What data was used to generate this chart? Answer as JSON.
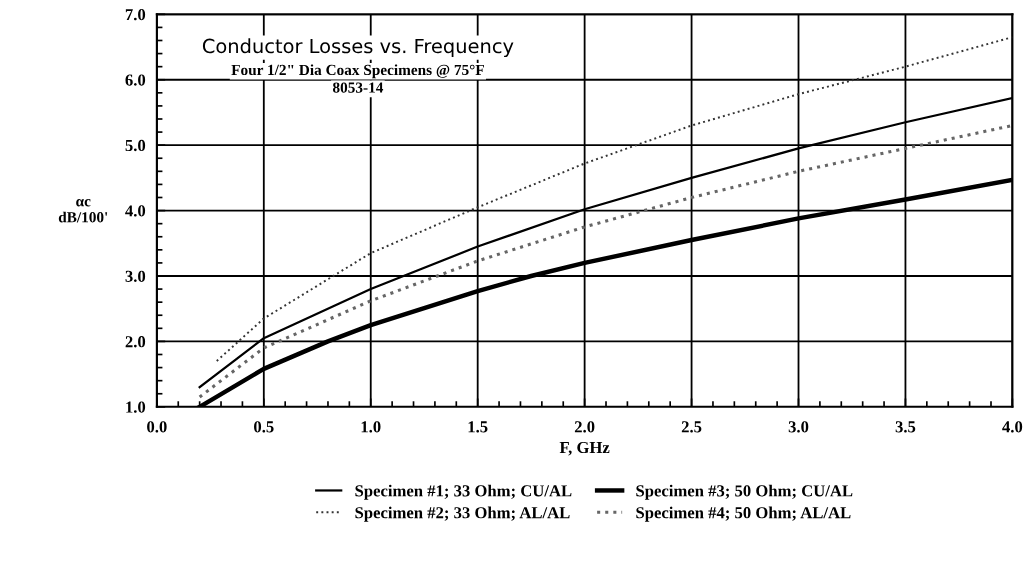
{
  "chart_data": {
    "type": "line",
    "title": "Conductor Losses vs. Frequency",
    "subtitle": "Four 1/2\" Dia Coax Specimens @ 75°F",
    "annotations": [
      "8053-14"
    ],
    "xlabel": "F, GHz",
    "ylabel": "αc\ndB/100'",
    "xlim": [
      0.0,
      4.0
    ],
    "xticks": [
      {
        "value": 0,
        "label": "0.0"
      },
      {
        "value": 0.5,
        "label": "0.5"
      },
      {
        "value": 1,
        "label": "1.0"
      },
      {
        "value": 1.5,
        "label": "1.5"
      },
      {
        "value": 2,
        "label": "2.0"
      },
      {
        "value": 2.5,
        "label": "2.5"
      },
      {
        "value": 3,
        "label": "3.0"
      },
      {
        "value": 3.5,
        "label": "3.5"
      },
      {
        "value": 4,
        "label": "4.0"
      }
    ],
    "ylim": [
      1.0,
      7.0
    ],
    "yticks": [
      {
        "value": 1,
        "label": "1.0"
      },
      {
        "value": 2,
        "label": "2.0"
      },
      {
        "value": 3,
        "label": "3.0"
      },
      {
        "value": 4,
        "label": "4.0"
      },
      {
        "value": 5,
        "label": "5.0"
      },
      {
        "value": 6,
        "label": "6.0"
      },
      {
        "value": 7,
        "label": "7.0"
      }
    ],
    "grid": true,
    "legend": "bottom",
    "marker": "none",
    "series": [
      {
        "name": "Specimen #1; 33 Ohm; CU/AL",
        "color": "#000000",
        "line_style": "solid",
        "x": [
          0.2,
          0.5,
          1.0,
          1.5,
          2.0,
          2.5,
          3.0,
          3.5,
          4.0
        ],
        "values": [
          1.3,
          2.05,
          2.8,
          3.45,
          4.02,
          4.5,
          4.95,
          5.35,
          5.72
        ]
      },
      {
        "name": "Specimen #3; 50 Ohm; CU/AL",
        "color": "#000000",
        "line_style": "solid",
        "x": [
          0.2,
          0.5,
          0.8,
          1.0,
          1.5,
          1.75,
          2.0,
          2.5,
          3.0,
          3.5,
          4.0
        ],
        "values": [
          1.0,
          1.58,
          2.0,
          2.25,
          2.77,
          3.0,
          3.2,
          3.55,
          3.88,
          4.17,
          4.47
        ]
      },
      {
        "name": "Specimen #2; 33 Ohm; AL/AL",
        "color": "#333333",
        "line_style": "dotted",
        "x": [
          0.28,
          0.5,
          1.0,
          1.5,
          2.0,
          2.5,
          3.0,
          3.5,
          4.0
        ],
        "values": [
          1.7,
          2.35,
          3.35,
          4.05,
          4.72,
          5.3,
          5.78,
          6.2,
          6.65
        ]
      },
      {
        "name": "Specimen #4; 50 Ohm; AL/AL",
        "color": "#666666",
        "line_style": "dotted",
        "x": [
          0.2,
          0.5,
          1.0,
          1.5,
          2.0,
          2.5,
          3.0,
          3.5,
          4.0
        ],
        "values": [
          1.15,
          1.9,
          2.62,
          3.23,
          3.75,
          4.2,
          4.6,
          4.95,
          5.3
        ]
      }
    ]
  }
}
